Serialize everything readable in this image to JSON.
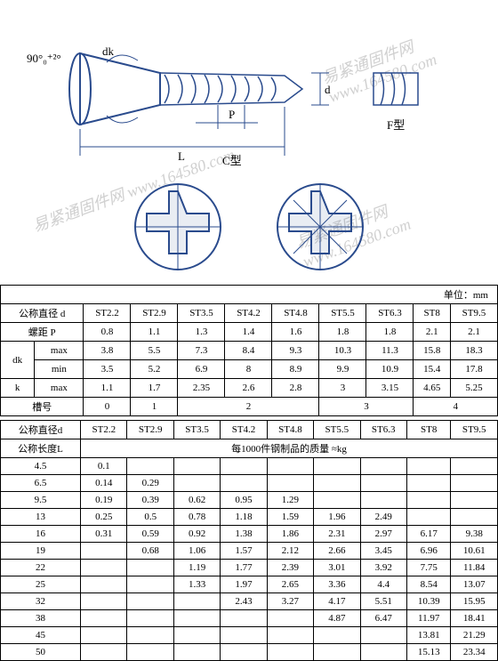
{
  "diagram": {
    "angle_label": "90°₀⁺²°",
    "labels": {
      "dk": "dk",
      "d": "d",
      "P": "P",
      "L": "L",
      "C": "C型",
      "F": "F型"
    },
    "colors": {
      "line": "#2a4b8d",
      "bg": "#ffffff"
    }
  },
  "watermark": "易紧通固件网 www.164580.com",
  "unit_label": "单位：mm",
  "table1": {
    "col_headers": [
      "ST2.2",
      "ST2.9",
      "ST3.5",
      "ST4.2",
      "ST4.8",
      "ST5.5",
      "ST6.3",
      "ST8",
      "ST9.5"
    ],
    "nominal_dia": "公称直径 d",
    "pitch_label": "螺距 P",
    "dk_label": "dk",
    "k_label": "k",
    "max_label": "max",
    "min_label": "min",
    "slot_label": "槽号",
    "pitch": [
      "0.8",
      "1.1",
      "1.3",
      "1.4",
      "1.6",
      "1.8",
      "1.8",
      "2.1",
      "2.1"
    ],
    "dk_max": [
      "3.8",
      "5.5",
      "7.3",
      "8.4",
      "9.3",
      "10.3",
      "11.3",
      "15.8",
      "18.3"
    ],
    "dk_min": [
      "3.5",
      "5.2",
      "6.9",
      "8",
      "8.9",
      "9.9",
      "10.9",
      "15.4",
      "17.8"
    ],
    "k_max": [
      "1.1",
      "1.7",
      "2.35",
      "2.6",
      "2.8",
      "3",
      "3.15",
      "4.65",
      "5.25"
    ],
    "slot": [
      "0",
      "1",
      "2",
      "",
      "",
      "3",
      "",
      "4",
      ""
    ]
  },
  "table2": {
    "nominal_dia": "公称直径d",
    "nominal_len": "公称长度L",
    "mass_label": "每1000件钢制品的质量 ≈kg",
    "col_headers": [
      "ST2.2",
      "ST2.9",
      "ST3.5",
      "ST4.2",
      "ST4.8",
      "ST5.5",
      "ST6.3",
      "ST8",
      "ST9.5"
    ],
    "rows": [
      {
        "len": "4.5",
        "v": [
          "0.1",
          "",
          "",
          "",
          "",
          "",
          "",
          "",
          ""
        ]
      },
      {
        "len": "6.5",
        "v": [
          "0.14",
          "0.29",
          "",
          "",
          "",
          "",
          "",
          "",
          ""
        ]
      },
      {
        "len": "9.5",
        "v": [
          "0.19",
          "0.39",
          "0.62",
          "0.95",
          "1.29",
          "",
          "",
          "",
          ""
        ]
      },
      {
        "len": "13",
        "v": [
          "0.25",
          "0.5",
          "0.78",
          "1.18",
          "1.59",
          "1.96",
          "2.49",
          "",
          ""
        ]
      },
      {
        "len": "16",
        "v": [
          "0.31",
          "0.59",
          "0.92",
          "1.38",
          "1.86",
          "2.31",
          "2.97",
          "6.17",
          "9.38"
        ]
      },
      {
        "len": "19",
        "v": [
          "",
          "0.68",
          "1.06",
          "1.57",
          "2.12",
          "2.66",
          "3.45",
          "6.96",
          "10.61"
        ]
      },
      {
        "len": "22",
        "v": [
          "",
          "",
          "1.19",
          "1.77",
          "2.39",
          "3.01",
          "3.92",
          "7.75",
          "11.84"
        ]
      },
      {
        "len": "25",
        "v": [
          "",
          "",
          "1.33",
          "1.97",
          "2.65",
          "3.36",
          "4.4",
          "8.54",
          "13.07"
        ]
      },
      {
        "len": "32",
        "v": [
          "",
          "",
          "",
          "2.43",
          "3.27",
          "4.17",
          "5.51",
          "10.39",
          "15.95"
        ]
      },
      {
        "len": "38",
        "v": [
          "",
          "",
          "",
          "",
          "",
          "4.87",
          "6.47",
          "11.97",
          "18.41"
        ]
      },
      {
        "len": "45",
        "v": [
          "",
          "",
          "",
          "",
          "",
          "",
          "",
          "13.81",
          "21.29"
        ]
      },
      {
        "len": "50",
        "v": [
          "",
          "",
          "",
          "",
          "",
          "",
          "",
          "15.13",
          "23.34"
        ]
      }
    ]
  }
}
